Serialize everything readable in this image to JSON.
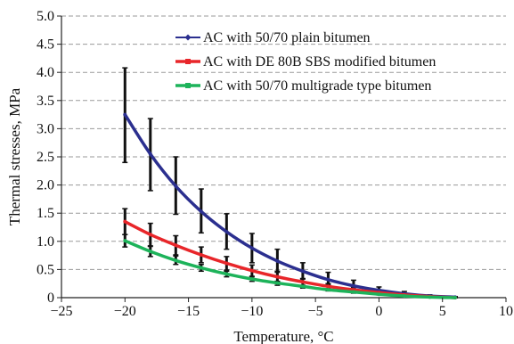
{
  "chart_data": {
    "type": "line",
    "xlabel": "Temperature, °C",
    "ylabel": "Thermal stresses, MPa",
    "xlim": [
      -25,
      10
    ],
    "ylim": [
      0,
      5
    ],
    "x_ticks": [
      -25,
      -20,
      -15,
      -10,
      -5,
      0,
      5,
      10
    ],
    "x_tick_labels": [
      "−25",
      "−20",
      "−15",
      "−10",
      "−5",
      "0",
      "5",
      "10"
    ],
    "y_ticks": [
      0,
      0.5,
      1.0,
      1.5,
      2.0,
      2.5,
      3.0,
      3.5,
      4.0,
      4.5,
      5.0
    ],
    "y_tick_labels": [
      "0",
      "0.5",
      "1.0",
      "1.5",
      "2.0",
      "2.5",
      "3.0",
      "3.5",
      "4.0",
      "4.5",
      "5.0"
    ],
    "grid": "horizontal dashed",
    "legend_placement": "top-right",
    "x": [
      -20,
      -18,
      -16,
      -14,
      -12,
      -10,
      -8,
      -6,
      -4,
      -2,
      0,
      2,
      4,
      6
    ],
    "series": [
      {
        "name": "AC with 50/70 plain bitumen",
        "color": "#2b2f8f",
        "values": [
          3.25,
          2.55,
          1.98,
          1.53,
          1.17,
          0.88,
          0.65,
          0.47,
          0.32,
          0.21,
          0.13,
          0.07,
          0.03,
          0.01
        ],
        "error_low": [
          2.4,
          1.9,
          1.48,
          1.15,
          0.86,
          0.62,
          0.47,
          0.33,
          0.23,
          0.15,
          0.09,
          0.05,
          0.02,
          0.0
        ],
        "error_high": [
          4.08,
          3.18,
          2.5,
          1.93,
          1.49,
          1.14,
          0.86,
          0.62,
          0.45,
          0.31,
          0.19,
          0.11,
          0.05,
          0.02
        ]
      },
      {
        "name": "AC with DE 80B SBS modified bitumen",
        "color": "#e8262a",
        "values": [
          1.35,
          1.12,
          0.93,
          0.76,
          0.61,
          0.48,
          0.37,
          0.28,
          0.2,
          0.14,
          0.09,
          0.05,
          0.02,
          0.0
        ],
        "error_low": [
          1.12,
          0.92,
          0.76,
          0.62,
          0.49,
          0.38,
          0.29,
          0.21,
          0.15,
          0.1,
          0.06,
          0.03,
          0.01,
          0.0
        ],
        "error_high": [
          1.58,
          1.32,
          1.1,
          0.9,
          0.73,
          0.58,
          0.45,
          0.34,
          0.25,
          0.18,
          0.12,
          0.07,
          0.03,
          0.01
        ]
      },
      {
        "name": "AC with 50/70 multigrade type bitumen",
        "color": "#1db35a",
        "values": [
          1.01,
          0.82,
          0.66,
          0.53,
          0.42,
          0.33,
          0.26,
          0.2,
          0.14,
          0.1,
          0.06,
          0.03,
          0.01,
          0.0
        ],
        "error_low": [
          0.9,
          0.73,
          0.59,
          0.47,
          0.37,
          0.29,
          0.22,
          0.17,
          0.12,
          0.08,
          0.05,
          0.02,
          0.01,
          0.0
        ],
        "error_high": [
          1.12,
          0.91,
          0.74,
          0.59,
          0.47,
          0.37,
          0.29,
          0.22,
          0.16,
          0.11,
          0.07,
          0.04,
          0.02,
          0.01
        ]
      }
    ]
  }
}
